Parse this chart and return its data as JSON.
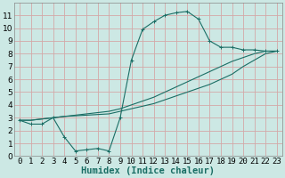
{
  "background_color": "#cce8e4",
  "grid_color": "#d4a8a8",
  "line_color": "#1a6e65",
  "xlabel": "Humidex (Indice chaleur)",
  "xlim": [
    -0.5,
    23.5
  ],
  "ylim": [
    0,
    12
  ],
  "xticks": [
    0,
    1,
    2,
    3,
    4,
    5,
    6,
    7,
    8,
    9,
    10,
    11,
    12,
    13,
    14,
    15,
    16,
    17,
    18,
    19,
    20,
    21,
    22,
    23
  ],
  "yticks": [
    0,
    1,
    2,
    3,
    4,
    5,
    6,
    7,
    8,
    9,
    10,
    11
  ],
  "curve1_x": [
    0,
    1,
    2,
    3,
    4,
    5,
    6,
    7,
    8,
    9,
    10,
    11,
    12,
    13,
    14,
    15,
    16,
    17,
    18,
    19,
    20,
    21,
    22,
    23
  ],
  "curve1_y": [
    2.8,
    2.5,
    2.5,
    3.0,
    1.5,
    0.4,
    0.5,
    0.6,
    0.4,
    3.0,
    7.5,
    9.9,
    10.5,
    11.0,
    11.2,
    11.3,
    10.7,
    9.0,
    8.5,
    8.5,
    8.3,
    8.3,
    8.2,
    8.2
  ],
  "curve2_x": [
    0,
    1,
    2,
    3,
    4,
    5,
    6,
    7,
    8,
    9,
    10,
    11,
    12,
    13,
    14,
    15,
    16,
    17,
    18,
    19,
    20,
    21,
    22,
    23
  ],
  "curve2_y": [
    2.8,
    2.8,
    2.9,
    3.0,
    3.1,
    3.2,
    3.3,
    3.4,
    3.5,
    3.7,
    4.0,
    4.3,
    4.6,
    5.0,
    5.4,
    5.8,
    6.2,
    6.6,
    7.0,
    7.4,
    7.7,
    8.0,
    8.2,
    8.2
  ],
  "curve3_x": [
    0,
    1,
    2,
    3,
    4,
    5,
    6,
    7,
    8,
    9,
    10,
    11,
    12,
    13,
    14,
    15,
    16,
    17,
    18,
    19,
    20,
    21,
    22,
    23
  ],
  "curve3_y": [
    2.8,
    2.8,
    2.9,
    3.0,
    3.1,
    3.15,
    3.2,
    3.25,
    3.3,
    3.5,
    3.7,
    3.9,
    4.1,
    4.4,
    4.7,
    5.0,
    5.3,
    5.6,
    6.0,
    6.4,
    7.0,
    7.5,
    8.0,
    8.2
  ],
  "tick_fontsize": 6.5,
  "xlabel_fontsize": 7.5,
  "linewidth": 0.8,
  "markersize": 2.5,
  "markeredgewidth": 0.7
}
